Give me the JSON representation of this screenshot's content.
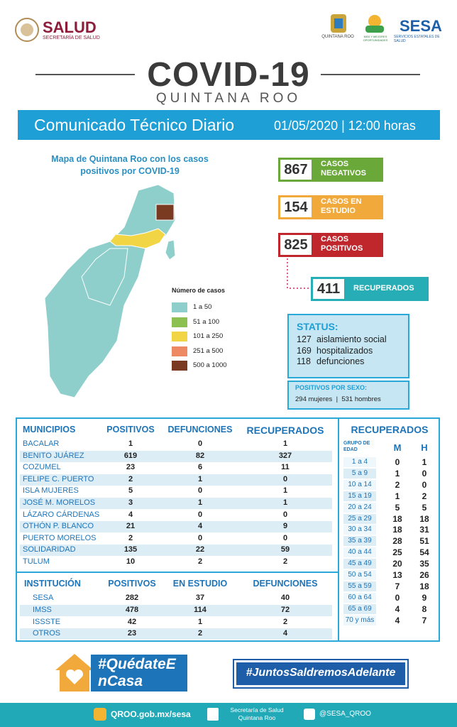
{
  "header": {
    "salud": "SALUD",
    "secretaria": "SECRETARÍA DE SALUD",
    "qroo_logo": "QUINTANA ROO",
    "oportunidades": "MÁS Y MEJORES OPORTUNIDADES",
    "sesa": "SESA",
    "sesa_sub": "SERVICIOS ESTATALES DE SALUD"
  },
  "title": {
    "main": "COVID-19",
    "sub": "QUINTANA ROO"
  },
  "banner": {
    "title": "Comunicado Técnico Diario",
    "date": "01/05/2020 | 12:00 horas"
  },
  "map": {
    "title": "Mapa de Quintana Roo con los casos positivos por COVID-19",
    "legend_title": "Número de casos",
    "legend": [
      {
        "label": "1 a 50",
        "color": "#8ecfcb"
      },
      {
        "label": "51 a 100",
        "color": "#8cc152"
      },
      {
        "label": "101 a 250",
        "color": "#f2d544"
      },
      {
        "label": "251 a 500",
        "color": "#ee8a63"
      },
      {
        "label": "500 a 1000",
        "color": "#7a3a22"
      }
    ]
  },
  "cases": [
    {
      "value": 867,
      "label": "CASOS NEGATIVOS",
      "color": "#6aa83a"
    },
    {
      "value": 154,
      "label": "CASOS EN ESTUDIO",
      "color": "#f2a93b"
    },
    {
      "value": 825,
      "label": "CASOS POSITIVOS",
      "color": "#c0272d"
    },
    {
      "value": 411,
      "label": "RECUPERADOS",
      "color": "#27adb5"
    }
  ],
  "status": {
    "title": "STATUS:",
    "items": [
      {
        "value": 127,
        "label": "aislamiento social"
      },
      {
        "value": 169,
        "label": "hospitalizados"
      },
      {
        "value": 118,
        "label": "defunciones"
      }
    ]
  },
  "sex": {
    "title": "POSITIVOS POR SEXO:",
    "women": {
      "value": 294,
      "label": "mujeres"
    },
    "men": {
      "value": 531,
      "label": "hombres"
    }
  },
  "municipios": {
    "headers": [
      "MUNICIPIOS",
      "POSITIVOS",
      "DEFUNCIONES",
      "RECUPERADOS"
    ],
    "rows": [
      [
        "BACALAR",
        1,
        0,
        1
      ],
      [
        "BENITO JUÁREZ",
        619,
        82,
        327
      ],
      [
        "COZUMEL",
        23,
        6,
        11
      ],
      [
        "FELIPE C. PUERTO",
        2,
        1,
        0
      ],
      [
        "ISLA MUJERES",
        5,
        0,
        1
      ],
      [
        "JOSÉ M. MORELOS",
        3,
        1,
        1
      ],
      [
        "LÁZARO CÁRDENAS",
        4,
        0,
        0
      ],
      [
        "OTHÓN P. BLANCO",
        21,
        4,
        9
      ],
      [
        "PUERTO MORELOS",
        2,
        0,
        0
      ],
      [
        "SOLIDARIDAD",
        135,
        22,
        59
      ],
      [
        "TULUM",
        10,
        2,
        2
      ]
    ]
  },
  "instituciones": {
    "headers": [
      "INSTITUCIÓN",
      "POSITIVOS",
      "EN ESTUDIO",
      "DEFUNCIONES"
    ],
    "rows": [
      [
        "SESA",
        282,
        37,
        40
      ],
      [
        "IMSS",
        478,
        114,
        72
      ],
      [
        "ISSSTE",
        42,
        1,
        2
      ],
      [
        "OTROS",
        23,
        2,
        4
      ]
    ]
  },
  "recuperados": {
    "title": "RECUPERADOS",
    "headers": [
      "GRUPO DE EDAD",
      "M",
      "H"
    ],
    "rows": [
      [
        "1 a 4",
        0,
        1
      ],
      [
        "5 a 9",
        1,
        0
      ],
      [
        "10 a 14",
        2,
        0
      ],
      [
        "15 a 19",
        1,
        2
      ],
      [
        "20 a 24",
        5,
        5
      ],
      [
        "25 a 29",
        18,
        18
      ],
      [
        "30 a 34",
        18,
        31
      ],
      [
        "35 a 39",
        28,
        51
      ],
      [
        "40 a 44",
        25,
        54
      ],
      [
        "45 a 49",
        20,
        35
      ],
      [
        "50 a 54",
        13,
        26
      ],
      [
        "55 a 59",
        7,
        18
      ],
      [
        "60 a 64",
        0,
        9
      ],
      [
        "65 a 69",
        4,
        8
      ],
      [
        "70 y más",
        4,
        7
      ]
    ]
  },
  "footer": {
    "quedate": "#QuédateEnCasa",
    "juntos": "#JuntosSaldremosAdelante",
    "web": "QROO.gob.mx/sesa",
    "secretaria": "Secretaría de Salud Quintana Roo",
    "twitter": "@SESA_QROO"
  }
}
